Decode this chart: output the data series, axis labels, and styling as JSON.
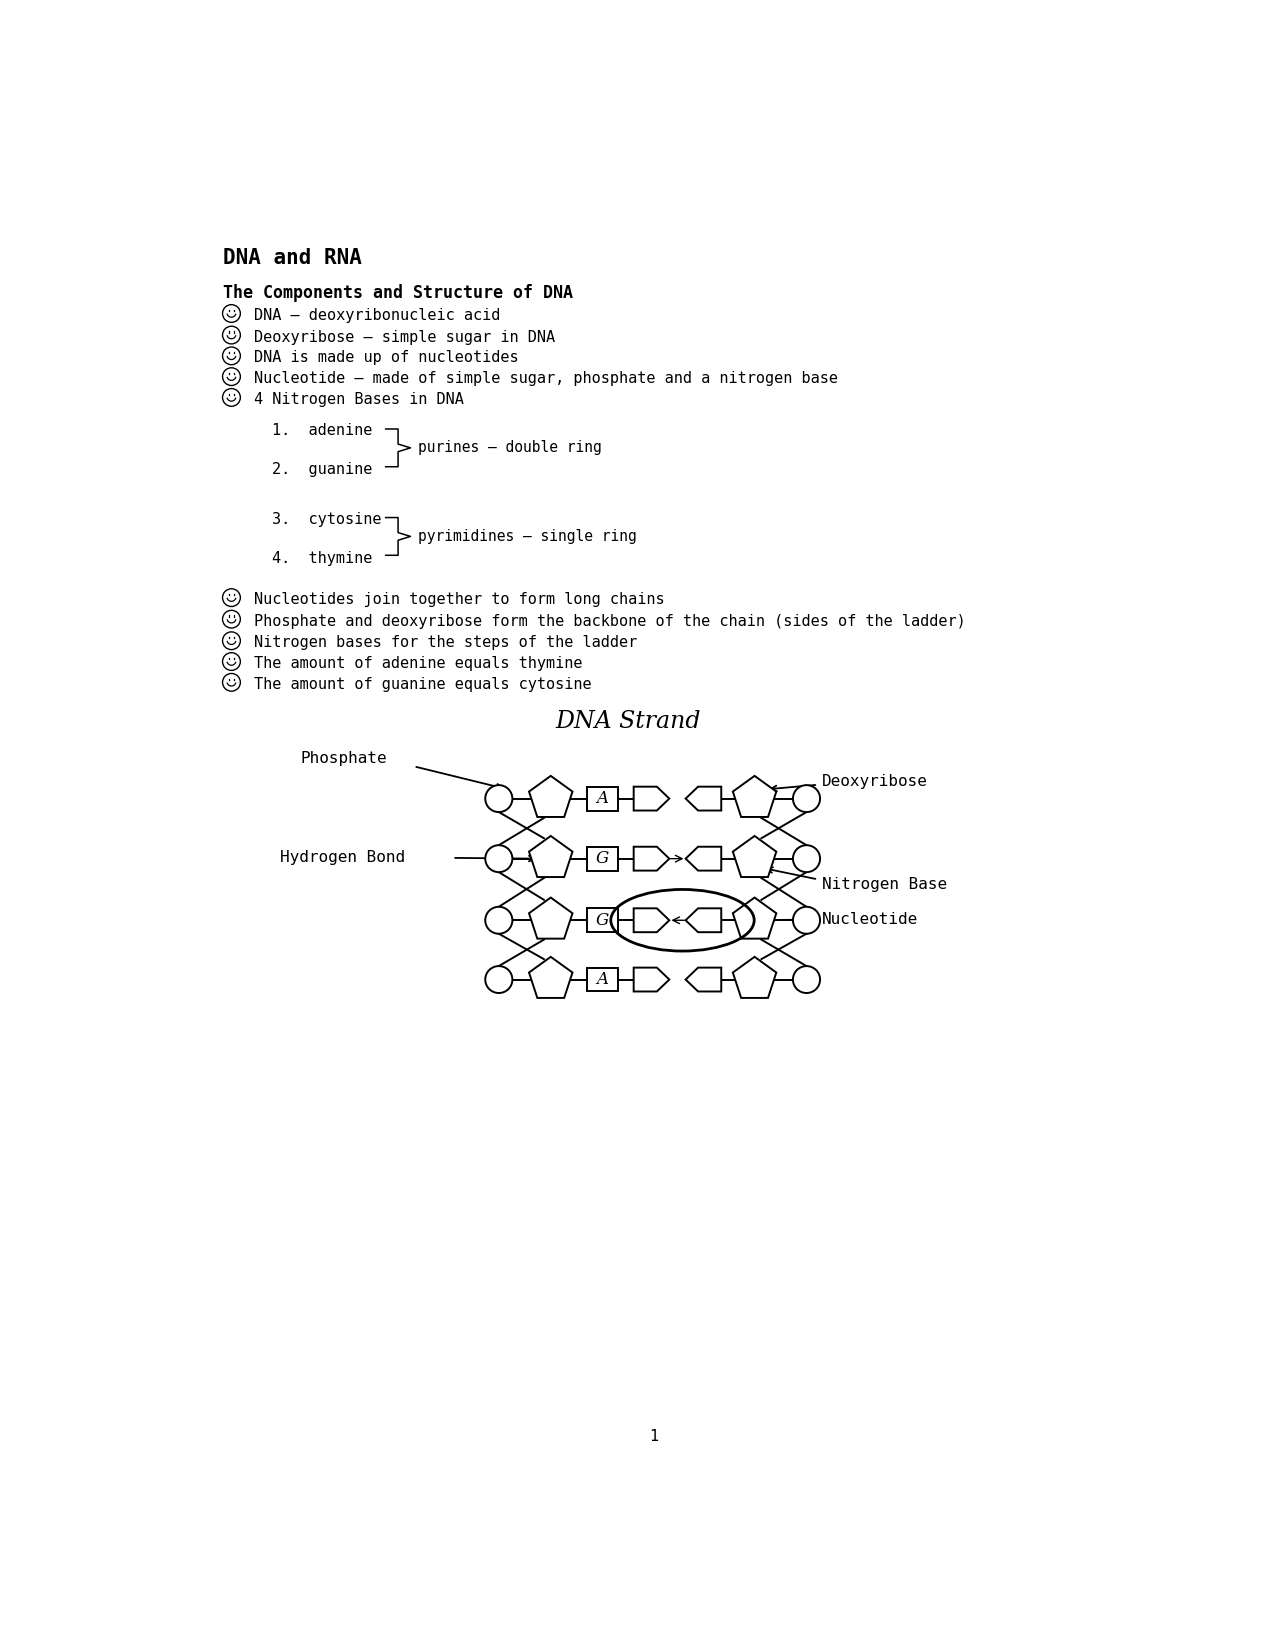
{
  "title": "DNA and RNA",
  "section_title": "The Components and Structure of DNA",
  "bullet_items": [
    "DNA – deoxyribonucleic acid",
    "Deoxyribose – simple sugar in DNA",
    "DNA is made up of nucleotides",
    "Nucleotide – made of simple sugar, phosphate and a nitrogen base",
    "4 Nitrogen Bases in DNA"
  ],
  "numbered_items": [
    "adenine",
    "guanine",
    "cytosine",
    "thymine"
  ],
  "brace_labels": [
    "purines – double ring",
    "pyrimidines – single ring"
  ],
  "extra_bullets": [
    "Nucleotides join together to form long chains",
    "Phosphate and deoxyribose form the backbone of the chain (sides of the ladder)",
    "Nitrogen bases for the steps of the ladder",
    "The amount of adenine equals thymine",
    "The amount of guanine equals cytosine"
  ],
  "diagram_title": "DNA Strand",
  "diagram_labels": {
    "phosphate": "Phosphate",
    "deoxyribose": "Deoxyribose",
    "hydrogen_bond": "Hydrogen Bond",
    "nitrogen_base": "Nitrogen Base",
    "nucleotide": "Nucleotide"
  },
  "page_number": "1",
  "bg_color": "#ffffff",
  "text_color": "#000000"
}
